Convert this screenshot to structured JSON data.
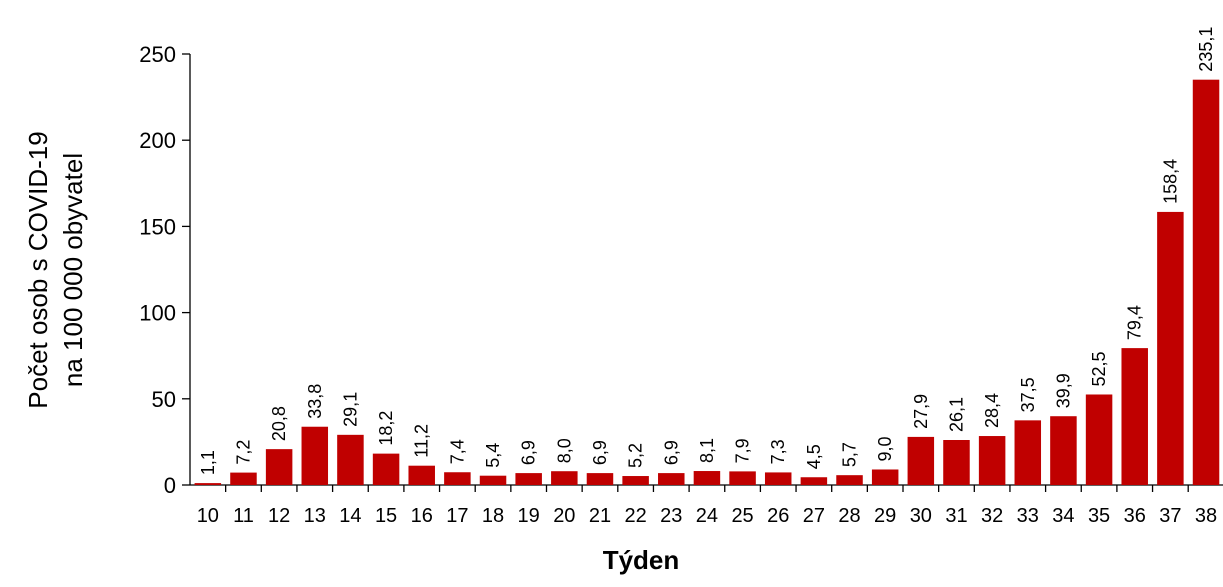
{
  "chart_data": {
    "type": "bar",
    "categories": [
      "10",
      "11",
      "12",
      "13",
      "14",
      "15",
      "16",
      "17",
      "18",
      "19",
      "20",
      "21",
      "22",
      "23",
      "24",
      "25",
      "26",
      "27",
      "28",
      "29",
      "30",
      "31",
      "32",
      "33",
      "34",
      "35",
      "36",
      "37",
      "38"
    ],
    "values": [
      1.1,
      7.2,
      20.8,
      33.8,
      29.1,
      18.2,
      11.2,
      7.4,
      5.4,
      6.9,
      8.0,
      6.9,
      5.2,
      6.9,
      8.1,
      7.9,
      7.3,
      4.5,
      5.7,
      9.0,
      27.9,
      26.1,
      28.4,
      37.5,
      39.9,
      52.5,
      79.4,
      158.4,
      235.1
    ],
    "data_labels": [
      "1,1",
      "7,2",
      "20,8",
      "33,8",
      "29,1",
      "18,2",
      "11,2",
      "7,4",
      "5,4",
      "6,9",
      "8,0",
      "6,9",
      "5,2",
      "6,9",
      "8,1",
      "7,9",
      "7,3",
      "4,5",
      "5,7",
      "9,0",
      "27,9",
      "26,1",
      "28,4",
      "37,5",
      "39,9",
      "52,5",
      "79,4",
      "158,4",
      "235,1"
    ],
    "xlabel": "Týden",
    "ylabel_line1": "Počet osob s COVID-19",
    "ylabel_line2": "na 100 000 obyvatel",
    "ylim": [
      0,
      250
    ],
    "yticks": [
      0,
      50,
      100,
      150,
      200,
      250
    ],
    "bar_color": "#c00000",
    "grid": false,
    "legend": "none"
  }
}
